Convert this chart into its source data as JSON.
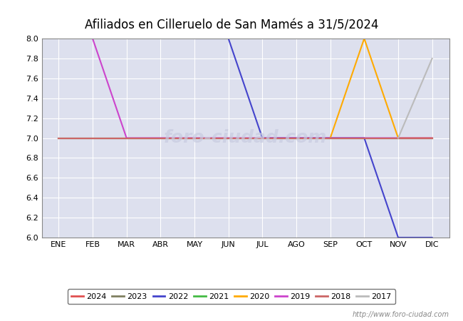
{
  "title": "Afiliados en Cilleruelo de San Mamés a 31/5/2024",
  "title_fontsize": 12,
  "ylim": [
    6.0,
    8.0
  ],
  "yticks": [
    6.0,
    6.2,
    6.4,
    6.6,
    6.8,
    7.0,
    7.2,
    7.4,
    7.6,
    7.8,
    8.0
  ],
  "months": [
    "ENE",
    "FEB",
    "MAR",
    "ABR",
    "MAY",
    "JUN",
    "JUL",
    "AGO",
    "SEP",
    "OCT",
    "NOV",
    "DIC"
  ],
  "month_indices": [
    1,
    2,
    3,
    4,
    5,
    6,
    7,
    8,
    9,
    10,
    11,
    12
  ],
  "watermark": "http://www.foro-ciudad.com",
  "bg_color": "#dde0ee",
  "series": [
    {
      "label": "2024",
      "color": "#e05050",
      "linewidth": 1.5,
      "data": [
        [
          1,
          7
        ],
        [
          2,
          7
        ],
        [
          3,
          7
        ],
        [
          4,
          7
        ],
        [
          5,
          7
        ]
      ]
    },
    {
      "label": "2023",
      "color": "#808060",
      "linewidth": 1.5,
      "data": [
        [
          1,
          7
        ],
        [
          2,
          7
        ],
        [
          3,
          7
        ],
        [
          4,
          7
        ],
        [
          5,
          7
        ],
        [
          6,
          7
        ],
        [
          7,
          7
        ],
        [
          8,
          7
        ],
        [
          9,
          7
        ],
        [
          10,
          7
        ],
        [
          11,
          7
        ],
        [
          12,
          7
        ]
      ]
    },
    {
      "label": "2022",
      "color": "#4444cc",
      "linewidth": 1.5,
      "data": [
        [
          5,
          8
        ],
        [
          6,
          8
        ],
        [
          7,
          7.0
        ],
        [
          8,
          7
        ],
        [
          9,
          7
        ],
        [
          10,
          7
        ],
        [
          11,
          6
        ],
        [
          12,
          6
        ]
      ]
    },
    {
      "label": "2021",
      "color": "#44bb44",
      "linewidth": 1.5,
      "data": [
        [
          1,
          7
        ],
        [
          2,
          7
        ],
        [
          3,
          7
        ],
        [
          4,
          7
        ],
        [
          5,
          7
        ],
        [
          6,
          7
        ],
        [
          7,
          7
        ],
        [
          8,
          7
        ],
        [
          9,
          7
        ],
        [
          10,
          7
        ],
        [
          11,
          7
        ],
        [
          12,
          7
        ]
      ]
    },
    {
      "label": "2020",
      "color": "#ffaa00",
      "linewidth": 1.5,
      "data": [
        [
          9,
          7
        ],
        [
          10,
          8
        ],
        [
          11,
          7
        ],
        [
          12,
          7
        ]
      ]
    },
    {
      "label": "2019",
      "color": "#cc44cc",
      "linewidth": 1.5,
      "data": [
        [
          2,
          8
        ],
        [
          3,
          7
        ],
        [
          4,
          7
        ],
        [
          5,
          7
        ],
        [
          6,
          7
        ],
        [
          7,
          7
        ],
        [
          8,
          7
        ],
        [
          9,
          7
        ],
        [
          10,
          7
        ],
        [
          11,
          7
        ],
        [
          12,
          7
        ]
      ]
    },
    {
      "label": "2018",
      "color": "#cc6666",
      "linewidth": 1.5,
      "data": [
        [
          1,
          7
        ],
        [
          2,
          7
        ],
        [
          3,
          7
        ],
        [
          4,
          7
        ],
        [
          5,
          7
        ],
        [
          6,
          7
        ],
        [
          7,
          7
        ],
        [
          8,
          7
        ],
        [
          9,
          7
        ],
        [
          10,
          7
        ],
        [
          11,
          7
        ],
        [
          12,
          7
        ]
      ]
    },
    {
      "label": "2017",
      "color": "#bbbbbb",
      "linewidth": 1.5,
      "data": [
        [
          11,
          7
        ],
        [
          12,
          7.8
        ]
      ]
    }
  ]
}
